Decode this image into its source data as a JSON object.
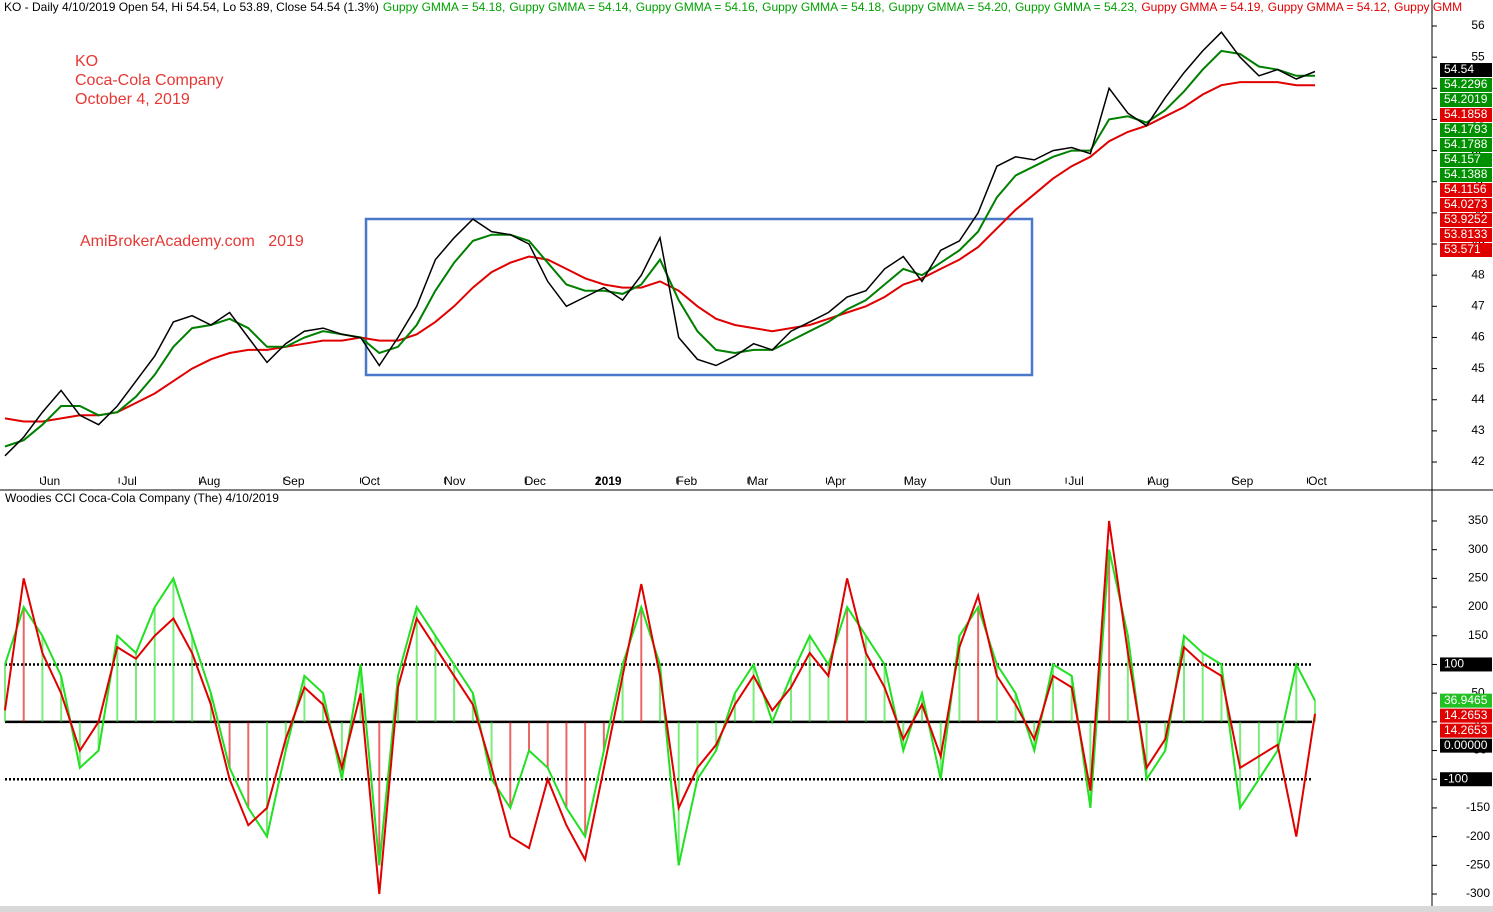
{
  "chart_data": [
    {
      "type": "line",
      "header": [
        {
          "text": "KO - Daily 4/10/2019 Open 54, Hi 54.54, Lo 53.89, Close 54.54 (1.3%)",
          "color": "#000000"
        },
        {
          "text": "Guppy GMMA = 54.18,",
          "color": "#00a000"
        },
        {
          "text": "Guppy GMMA = 54.14,",
          "color": "#00a000"
        },
        {
          "text": "Guppy GMMA = 54.16,",
          "color": "#00a000"
        },
        {
          "text": "Guppy GMMA = 54.18,",
          "color": "#00a000"
        },
        {
          "text": "Guppy GMMA = 54.20,",
          "color": "#00a000"
        },
        {
          "text": "Guppy GMMA = 54.23,",
          "color": "#00a000"
        },
        {
          "text": "Guppy GMMA = 54.19,",
          "color": "#e00000"
        },
        {
          "text": "Guppy GMMA = 54.12,",
          "color": "#e00000"
        },
        {
          "text": "Guppy GMM",
          "color": "#e00000"
        }
      ],
      "annotations": [
        "KO",
        "Coca-Cola Company",
        "October 4, 2019",
        "AmiBrokerAcademy.com   2019"
      ],
      "xlim": [
        0,
        70
      ],
      "xticks": [
        {
          "value": 1.9,
          "label": "Jun"
        },
        {
          "value": 6.1,
          "label": "Jul"
        },
        {
          "value": 10.4,
          "label": "Aug"
        },
        {
          "value": 14.9,
          "label": "Sep"
        },
        {
          "value": 19.0,
          "label": "Oct"
        },
        {
          "value": 23.5,
          "label": "Nov"
        },
        {
          "value": 27.8,
          "label": "Dec"
        },
        {
          "value": 31.7,
          "label": "2019"
        },
        {
          "value": 35.9,
          "label": "Feb"
        },
        {
          "value": 39.7,
          "label": "Mar"
        },
        {
          "value": 43.9,
          "label": "Apr"
        },
        {
          "value": 48.1,
          "label": "May"
        },
        {
          "value": 52.7,
          "label": "Jun"
        },
        {
          "value": 56.7,
          "label": "Jul"
        },
        {
          "value": 61.1,
          "label": "Aug"
        },
        {
          "value": 65.6,
          "label": "Sep"
        },
        {
          "value": 69.6,
          "label": "Oct"
        }
      ],
      "ylim": [
        41.5,
        56.8
      ],
      "yticks": [
        42,
        43,
        44,
        45,
        46,
        47,
        48,
        49,
        50,
        51,
        52,
        53,
        54,
        55,
        56
      ],
      "grid": false,
      "series": [
        {
          "color": "#e00000",
          "values": [
            43.4,
            43.3,
            43.3,
            43.4,
            43.5,
            43.5,
            43.6,
            43.9,
            44.2,
            44.6,
            45.0,
            45.3,
            45.5,
            45.6,
            45.6,
            45.7,
            45.8,
            45.9,
            45.9,
            46.0,
            45.9,
            45.9,
            46.1,
            46.5,
            47.0,
            47.6,
            48.1,
            48.4,
            48.6,
            48.5,
            48.2,
            47.9,
            47.7,
            47.6,
            47.6,
            47.8,
            47.5,
            47.0,
            46.6,
            46.4,
            46.3,
            46.2,
            46.3,
            46.4,
            46.6,
            46.8,
            47.0,
            47.3,
            47.7,
            47.9,
            48.2,
            48.5,
            48.9,
            49.5,
            50.1,
            50.6,
            51.1,
            51.5,
            51.8,
            52.3,
            52.6,
            52.8,
            53.1,
            53.4,
            53.8,
            54.1,
            54.2,
            54.2,
            54.2,
            54.1,
            54.1
          ]
        },
        {
          "color": "#008000",
          "values": [
            42.5,
            42.7,
            43.2,
            43.8,
            43.8,
            43.5,
            43.6,
            44.1,
            44.8,
            45.7,
            46.3,
            46.4,
            46.6,
            46.3,
            45.7,
            45.7,
            46.0,
            46.2,
            46.1,
            46.0,
            45.5,
            45.7,
            46.4,
            47.5,
            48.4,
            49.1,
            49.3,
            49.3,
            49.1,
            48.4,
            47.7,
            47.5,
            47.5,
            47.4,
            47.7,
            48.5,
            47.2,
            46.2,
            45.6,
            45.5,
            45.6,
            45.6,
            45.9,
            46.2,
            46.5,
            46.9,
            47.2,
            47.7,
            48.2,
            48.0,
            48.4,
            48.8,
            49.4,
            50.5,
            51.2,
            51.5,
            51.8,
            52.0,
            52.0,
            53.0,
            53.1,
            52.9,
            53.3,
            53.9,
            54.6,
            55.2,
            55.1,
            54.7,
            54.6,
            54.4,
            54.4
          ]
        },
        {
          "color": "#000000",
          "values": [
            42.2,
            42.8,
            43.6,
            44.3,
            43.5,
            43.2,
            43.8,
            44.6,
            45.4,
            46.5,
            46.7,
            46.4,
            46.8,
            46.0,
            45.2,
            45.8,
            46.2,
            46.3,
            46.1,
            46.0,
            45.1,
            46.0,
            47.0,
            48.5,
            49.2,
            49.8,
            49.4,
            49.3,
            49.0,
            47.8,
            47.0,
            47.3,
            47.6,
            47.2,
            48.0,
            49.2,
            46.0,
            45.3,
            45.1,
            45.4,
            45.8,
            45.6,
            46.2,
            46.5,
            46.8,
            47.3,
            47.5,
            48.2,
            48.6,
            47.8,
            48.8,
            49.1,
            50.0,
            51.5,
            51.8,
            51.7,
            52.0,
            52.1,
            51.9,
            54.0,
            53.2,
            52.8,
            53.7,
            54.5,
            55.2,
            55.8,
            55.0,
            54.4,
            54.6,
            54.3,
            54.54
          ]
        }
      ],
      "value_tags": [
        {
          "label": "54.54",
          "color": "#000000"
        },
        {
          "label": "54.2296",
          "color": "#009000"
        },
        {
          "label": "54.2019",
          "color": "#009000"
        },
        {
          "label": "54.1858",
          "color": "#e00000"
        },
        {
          "label": "54.1793",
          "color": "#009000"
        },
        {
          "label": "54.1788",
          "color": "#009000"
        },
        {
          "label": "54.157",
          "color": "#009000"
        },
        {
          "label": "54.1388",
          "color": "#009000"
        },
        {
          "label": "54.1156",
          "color": "#e00000"
        },
        {
          "label": "54.0273",
          "color": "#e00000"
        },
        {
          "label": "53.9252",
          "color": "#e00000"
        },
        {
          "label": "53.8133",
          "color": "#e00000"
        },
        {
          "label": "53.571",
          "color": "#e00000"
        }
      ]
    },
    {
      "type": "line",
      "title": "Woodies CCI  Coca-Cola Company (The) 4/10/2019",
      "xlim": [
        0,
        70
      ],
      "ylim": [
        -320,
        370
      ],
      "yticks": [
        -300,
        -250,
        -200,
        -150,
        -100,
        -50,
        0,
        50,
        100,
        150,
        200,
        250,
        300,
        350
      ],
      "levels": [
        100,
        0,
        -100
      ],
      "histogram": true,
      "series": [
        {
          "color": "#22e022",
          "values": [
            100,
            200,
            150,
            80,
            -80,
            -50,
            150,
            120,
            200,
            250,
            150,
            50,
            -80,
            -150,
            -200,
            -50,
            80,
            50,
            -100,
            100,
            -250,
            80,
            200,
            150,
            100,
            50,
            -100,
            -150,
            -50,
            -80,
            -150,
            -200,
            -50,
            100,
            200,
            100,
            -250,
            -100,
            -50,
            50,
            100,
            0,
            80,
            150,
            100,
            200,
            150,
            100,
            -50,
            50,
            -100,
            150,
            200,
            100,
            50,
            -50,
            100,
            80,
            -150,
            300,
            150,
            -100,
            -50,
            150,
            120,
            100,
            -150,
            -100,
            -50,
            100,
            37
          ]
        },
        {
          "color": "#e00000",
          "values": [
            20,
            250,
            120,
            50,
            -50,
            0,
            130,
            110,
            150,
            180,
            120,
            30,
            -100,
            -180,
            -150,
            -30,
            60,
            30,
            -80,
            50,
            -300,
            60,
            180,
            130,
            80,
            30,
            -80,
            -200,
            -220,
            -100,
            -180,
            -240,
            -80,
            80,
            240,
            80,
            -150,
            -80,
            -40,
            30,
            80,
            20,
            60,
            120,
            80,
            250,
            120,
            60,
            -30,
            30,
            -60,
            130,
            220,
            80,
            30,
            -30,
            80,
            60,
            -120,
            350,
            120,
            -80,
            -30,
            130,
            100,
            80,
            -80,
            -60,
            -40,
            -200,
            14
          ]
        }
      ],
      "value_tags": [
        {
          "value": 100,
          "label": "100",
          "color": "#000000"
        },
        {
          "value": 36.9465,
          "label": "36.9465",
          "color": "#22c022"
        },
        {
          "value": 14.2653,
          "label": "14.2653",
          "color": "#e00000"
        },
        {
          "value": 14.2653,
          "label": "14.2653",
          "color": "#e00000"
        },
        {
          "value": 0,
          "label": "0.00000",
          "color": "#000000"
        },
        {
          "value": -100,
          "label": "-100",
          "color": "#000000"
        }
      ]
    }
  ]
}
